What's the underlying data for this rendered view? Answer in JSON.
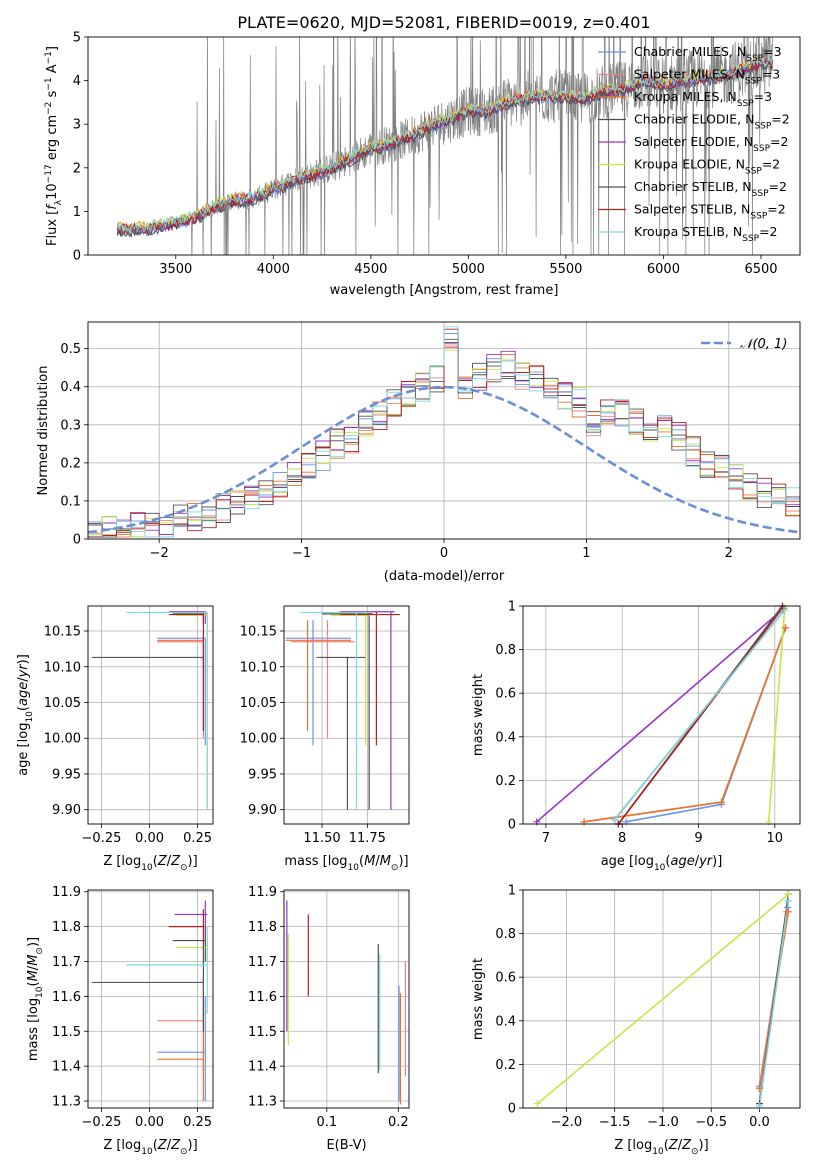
{
  "figure": {
    "title": "PLATE=0620, MJD=52081, FIBERID=0019, z=0.401"
  },
  "colors": {
    "Chabrier MILES": "#6495ed",
    "Salpeter MILES": "#f08080",
    "Kroupa MILES": "#e8742c",
    "Chabrier ELODIE": "#4d4d4d",
    "Salpeter ELODIE": "#9932cc",
    "Kroupa ELODIE": "#c6e64a",
    "Chabrier STELIB": "#555555",
    "Salpeter STELIB": "#b22222",
    "Kroupa STELIB": "#7fd7e0",
    "data": "#808080",
    "gauss": "#6a8fd8"
  },
  "chart_data": [
    {
      "id": "spectrum",
      "type": "line",
      "xlabel": "wavelength [Angstrom, rest frame]",
      "ylabel": "Flux [f_λ 10^-17 erg cm^-2 s^-1 A^-1]",
      "xlim": [
        3050,
        6700
      ],
      "ylim": [
        0,
        5
      ],
      "xticks": [
        3500,
        4000,
        4500,
        5000,
        5500,
        6000,
        6500
      ],
      "yticks": [
        0,
        1,
        2,
        3,
        4,
        5
      ],
      "grid": false,
      "legend": {
        "placement": "top-right",
        "entries": [
          {
            "label": "Chabrier MILES, N",
            "sub": "SSP",
            "suffix": "=3",
            "color_key": "Chabrier MILES"
          },
          {
            "label": "Salpeter MILES, N",
            "sub": "SSP",
            "suffix": "=3",
            "color_key": "Salpeter MILES"
          },
          {
            "label": "Kroupa MILES, N",
            "sub": "SSP",
            "suffix": "=3",
            "color_key": "Kroupa MILES"
          },
          {
            "label": "Chabrier ELODIE, N",
            "sub": "SSP",
            "suffix": "=2",
            "color_key": "Chabrier ELODIE"
          },
          {
            "label": "Salpeter ELODIE, N",
            "sub": "SSP",
            "suffix": "=2",
            "color_key": "Salpeter ELODIE"
          },
          {
            "label": "Kroupa ELODIE, N",
            "sub": "SSP",
            "suffix": "=2",
            "color_key": "Kroupa ELODIE"
          },
          {
            "label": "Chabrier STELIB, N",
            "sub": "SSP",
            "suffix": "=2",
            "color_key": "Chabrier STELIB"
          },
          {
            "label": "Salpeter STELIB, N",
            "sub": "SSP",
            "suffix": "=2",
            "color_key": "Salpeter STELIB"
          },
          {
            "label": "Kroupa STELIB, N",
            "sub": "SSP",
            "suffix": "=2",
            "color_key": "Kroupa STELIB"
          }
        ]
      },
      "continuum_knots": {
        "x": [
          3200,
          3350,
          3500,
          3600,
          3700,
          3800,
          3900,
          4000,
          4100,
          4200,
          4300,
          4400,
          4500,
          4600,
          4700,
          4800,
          4900,
          5000,
          5100,
          5200,
          5300,
          5400,
          5500,
          5600,
          5700,
          5800,
          5900,
          6000,
          6100,
          6200,
          6300,
          6400,
          6500
        ],
        "y": [
          0.6,
          0.6,
          0.75,
          0.85,
          1.1,
          1.25,
          1.3,
          1.5,
          1.7,
          1.85,
          2.0,
          2.2,
          2.45,
          2.55,
          2.7,
          2.95,
          3.1,
          3.3,
          3.3,
          3.5,
          3.6,
          3.65,
          3.6,
          3.6,
          3.75,
          3.8,
          4.0,
          3.9,
          4.0,
          4.05,
          4.1,
          4.25,
          4.4
        ]
      },
      "model_xrange": [
        3200,
        6560
      ],
      "data_xrange": [
        3200,
        6560
      ]
    },
    {
      "id": "residuals",
      "type": "line",
      "xlabel": "(data-model)/error",
      "ylabel": "Normed distribution",
      "xlim": [
        -2.5,
        2.5
      ],
      "ylim": [
        0,
        0.57
      ],
      "xticks": [
        -2,
        -1,
        0,
        1,
        2
      ],
      "yticks": [
        0.0,
        0.1,
        0.2,
        0.3,
        0.4,
        0.5
      ],
      "grid": true,
      "legend": {
        "placement": "top-right",
        "entries": [
          {
            "label": "𝒩(0, 1)",
            "color_key": "gauss"
          }
        ]
      },
      "bin_edges_start": -2.5,
      "bin_width": 0.1,
      "base_shape": [
        0.02,
        0.02,
        0.02,
        0.03,
        0.03,
        0.04,
        0.05,
        0.06,
        0.06,
        0.08,
        0.09,
        0.1,
        0.12,
        0.14,
        0.17,
        0.19,
        0.22,
        0.25,
        0.26,
        0.3,
        0.32,
        0.36,
        0.38,
        0.4,
        0.42,
        0.52,
        0.4,
        0.43,
        0.45,
        0.46,
        0.43,
        0.42,
        0.4,
        0.38,
        0.36,
        0.3,
        0.34,
        0.33,
        0.31,
        0.29,
        0.3,
        0.27,
        0.23,
        0.2,
        0.19,
        0.17,
        0.14,
        0.12,
        0.11,
        0.1
      ]
    },
    {
      "id": "age-vs-Z",
      "type": "scatter",
      "xlabel": "Z [log10(Z/Z☉)]",
      "ylabel": "age [log10(age/yr)]",
      "xlim": [
        -0.32,
        0.33
      ],
      "ylim": [
        9.88,
        10.185
      ],
      "xticks": [
        -0.25,
        0.0,
        0.25
      ],
      "xticklabels": [
        "−0.25",
        "0.00",
        "0.25"
      ],
      "yticks": [
        9.9,
        9.95,
        10.0,
        10.05,
        10.1,
        10.15
      ],
      "yticklabels": [
        "9.90",
        "9.95",
        "10.00",
        "10.05",
        "10.10",
        "10.15"
      ],
      "grid": true,
      "points": [
        {
          "model": "Chabrier MILES",
          "x": 0.29,
          "y": 10.14,
          "xlo": 0.04,
          "xhi": 0.29,
          "ylo": 9.99,
          "yhi": 10.14
        },
        {
          "model": "Salpeter MILES",
          "x": 0.28,
          "y": 10.135,
          "xlo": 0.04,
          "xhi": 0.28,
          "ylo": 10.0,
          "yhi": 10.14
        },
        {
          "model": "Kroupa MILES",
          "x": 0.28,
          "y": 10.137,
          "xlo": 0.04,
          "xhi": 0.28,
          "ylo": 10.01,
          "yhi": 10.14
        },
        {
          "model": "Chabrier ELODIE",
          "x": 0.28,
          "y": 10.174,
          "xlo": 0.12,
          "xhi": 0.28,
          "ylo": 10.16,
          "yhi": 10.175
        },
        {
          "model": "Salpeter ELODIE",
          "x": 0.29,
          "y": 10.177,
          "xlo": 0.1,
          "xhi": 0.29,
          "ylo": 10.16,
          "yhi": 10.177
        },
        {
          "model": "Kroupa ELODIE",
          "x": 0.3,
          "y": 10.172,
          "xlo": 0.14,
          "xhi": 0.3,
          "ylo": 9.9,
          "yhi": 10.175
        },
        {
          "model": "Chabrier STELIB",
          "x": 0.28,
          "y": 10.113,
          "xlo": -0.3,
          "xhi": 0.28,
          "ylo": 10.11,
          "yhi": 10.114
        },
        {
          "model": "Salpeter STELIB",
          "x": 0.28,
          "y": 10.173,
          "xlo": 0.1,
          "xhi": 0.28,
          "ylo": 10.01,
          "yhi": 10.175
        },
        {
          "model": "Kroupa STELIB",
          "x": 0.3,
          "y": 10.176,
          "xlo": -0.12,
          "xhi": 0.3,
          "ylo": 9.9,
          "yhi": 10.177
        }
      ]
    },
    {
      "id": "age-vs-mass",
      "type": "scatter",
      "xlabel": "mass [log10(M/M☉)]",
      "ylabel": "",
      "xlim": [
        11.29,
        11.98
      ],
      "ylim": [
        9.88,
        10.185
      ],
      "xticks": [
        11.5,
        11.75
      ],
      "xticklabels": [
        "11.50",
        "11.75"
      ],
      "yticks": [
        9.9,
        9.95,
        10.0,
        10.05,
        10.1,
        10.15
      ],
      "yticklabels": [
        "9.90",
        "9.95",
        "10.00",
        "10.05",
        "10.10",
        "10.15"
      ],
      "grid": true,
      "points": [
        {
          "model": "Chabrier MILES",
          "x": 11.45,
          "y": 10.14,
          "xlo": 11.3,
          "xhi": 11.66,
          "ylo": 9.99,
          "yhi": 10.165
        },
        {
          "model": "Salpeter MILES",
          "x": 11.53,
          "y": 10.135,
          "xlo": 11.33,
          "xhi": 11.68,
          "ylo": 10.0,
          "yhi": 10.165
        },
        {
          "model": "Kroupa MILES",
          "x": 11.42,
          "y": 10.137,
          "xlo": 11.3,
          "xhi": 11.66,
          "ylo": 10.01,
          "yhi": 10.165
        },
        {
          "model": "Chabrier ELODIE",
          "x": 11.76,
          "y": 10.174,
          "xlo": 11.5,
          "xhi": 11.78,
          "ylo": 9.9,
          "yhi": 10.175
        },
        {
          "model": "Salpeter ELODIE",
          "x": 11.88,
          "y": 10.177,
          "xlo": 11.6,
          "xhi": 11.9,
          "ylo": 9.9,
          "yhi": 10.177
        },
        {
          "model": "Kroupa ELODIE",
          "x": 11.74,
          "y": 10.172,
          "xlo": 11.55,
          "xhi": 11.76,
          "ylo": 9.99,
          "yhi": 10.175
        },
        {
          "model": "Chabrier STELIB",
          "x": 11.64,
          "y": 10.113,
          "xlo": 11.47,
          "xhi": 11.74,
          "ylo": 9.9,
          "yhi": 10.114
        },
        {
          "model": "Salpeter STELIB",
          "x": 11.8,
          "y": 10.173,
          "xlo": 11.6,
          "xhi": 11.93,
          "ylo": 9.99,
          "yhi": 10.177
        },
        {
          "model": "Kroupa STELIB",
          "x": 11.69,
          "y": 10.176,
          "xlo": 11.38,
          "xhi": 11.77,
          "ylo": 9.9,
          "yhi": 10.177
        }
      ]
    },
    {
      "id": "weight-vs-age",
      "type": "line",
      "xlabel": "age [log10(age/yr)]",
      "ylabel": "mass weight",
      "xlim": [
        6.7,
        10.33
      ],
      "ylim": [
        0,
        1.0
      ],
      "xticks": [
        7,
        8,
        9,
        10
      ],
      "yticks": [
        0.0,
        0.2,
        0.4,
        0.6,
        0.8,
        1.0
      ],
      "grid": true,
      "series": [
        {
          "model": "Chabrier MILES",
          "x": [
            8.05,
            9.3,
            10.14
          ],
          "y": [
            0.01,
            0.09,
            0.9
          ]
        },
        {
          "model": "Salpeter MILES",
          "x": [
            7.5,
            9.3,
            10.14
          ],
          "y": [
            0.01,
            0.1,
            0.9
          ]
        },
        {
          "model": "Kroupa MILES",
          "x": [
            7.5,
            9.3,
            10.14
          ],
          "y": [
            0.01,
            0.1,
            0.9
          ]
        },
        {
          "model": "Chabrier ELODIE",
          "x": [
            7.9,
            10.12
          ],
          "y": [
            0.02,
            0.98
          ]
        },
        {
          "model": "Salpeter ELODIE",
          "x": [
            6.88,
            10.12
          ],
          "y": [
            0.01,
            0.99
          ]
        },
        {
          "model": "Kroupa ELODIE",
          "x": [
            9.92,
            10.13
          ],
          "y": [
            0.01,
            0.99
          ]
        },
        {
          "model": "Chabrier STELIB",
          "x": [
            7.95,
            10.1
          ],
          "y": [
            0.0,
            1.0
          ]
        },
        {
          "model": "Salpeter STELIB",
          "x": [
            7.95,
            10.1
          ],
          "y": [
            0.0,
            0.99
          ]
        },
        {
          "model": "Kroupa STELIB",
          "x": [
            7.9,
            10.12
          ],
          "y": [
            0.02,
            0.98
          ]
        }
      ]
    },
    {
      "id": "mass-vs-Z",
      "type": "scatter",
      "xlabel": "Z [log10(Z/Z☉)]",
      "ylabel": "mass [log10(M/M☉)]",
      "xlim": [
        -0.32,
        0.33
      ],
      "ylim": [
        11.28,
        11.905
      ],
      "xticks": [
        -0.25,
        0.0,
        0.25
      ],
      "xticklabels": [
        "−0.25",
        "0.00",
        "0.25"
      ],
      "yticks": [
        11.3,
        11.4,
        11.5,
        11.6,
        11.7,
        11.8,
        11.9
      ],
      "grid": true,
      "points": [
        {
          "model": "Chabrier MILES",
          "x": 0.29,
          "y": 11.44,
          "xlo": 0.04,
          "xhi": 0.29,
          "ylo": 11.3,
          "yhi": 11.6
        },
        {
          "model": "Salpeter MILES",
          "x": 0.28,
          "y": 11.53,
          "xlo": 0.04,
          "xhi": 0.28,
          "ylo": 11.35,
          "yhi": 11.65
        },
        {
          "model": "Kroupa MILES",
          "x": 0.28,
          "y": 11.42,
          "xlo": 0.04,
          "xhi": 0.28,
          "ylo": 11.3,
          "yhi": 11.6
        },
        {
          "model": "Chabrier ELODIE",
          "x": 0.29,
          "y": 11.76,
          "xlo": 0.12,
          "xhi": 0.29,
          "ylo": 11.7,
          "yhi": 11.8
        },
        {
          "model": "Salpeter ELODIE",
          "x": 0.29,
          "y": 11.835,
          "xlo": 0.13,
          "xhi": 0.3,
          "ylo": 11.79,
          "yhi": 11.875
        },
        {
          "model": "Kroupa ELODIE",
          "x": 0.3,
          "y": 11.74,
          "xlo": 0.14,
          "xhi": 0.3,
          "ylo": 11.71,
          "yhi": 11.77
        },
        {
          "model": "Chabrier STELIB",
          "x": 0.28,
          "y": 11.64,
          "xlo": -0.3,
          "xhi": 0.28,
          "ylo": 11.5,
          "yhi": 11.75
        },
        {
          "model": "Salpeter STELIB",
          "x": 0.28,
          "y": 11.8,
          "xlo": 0.1,
          "xhi": 0.28,
          "ylo": 11.75,
          "yhi": 11.85
        },
        {
          "model": "Kroupa STELIB",
          "x": 0.3,
          "y": 11.69,
          "xlo": -0.12,
          "xhi": 0.3,
          "ylo": 11.55,
          "yhi": 11.8
        }
      ]
    },
    {
      "id": "mass-vs-ebv",
      "type": "scatter",
      "xlabel": "E(B-V)",
      "ylabel": "",
      "xlim": [
        0.04,
        0.215
      ],
      "ylim": [
        11.28,
        11.905
      ],
      "xticks": [
        0.1,
        0.2
      ],
      "yticks": [
        11.3,
        11.4,
        11.5,
        11.6,
        11.7,
        11.8,
        11.9
      ],
      "grid": true,
      "segments": [
        {
          "model": "Salpeter ELODIE",
          "x": 0.044,
          "ylo": 11.5,
          "yhi": 11.875
        },
        {
          "model": "Kroupa ELODIE",
          "x": 0.046,
          "ylo": 11.46,
          "yhi": 11.78
        },
        {
          "model": "Salpeter STELIB",
          "x": 0.074,
          "ylo": 11.6,
          "yhi": 11.835
        },
        {
          "model": "Chabrier ELODIE",
          "x": 0.172,
          "ylo": 11.38,
          "yhi": 11.75
        },
        {
          "model": "Kroupa STELIB",
          "x": 0.174,
          "ylo": 11.39,
          "yhi": 11.72
        },
        {
          "model": "Chabrier MILES",
          "x": 0.201,
          "ylo": 11.3,
          "yhi": 11.63
        },
        {
          "model": "Kroupa MILES",
          "x": 0.203,
          "ylo": 11.29,
          "yhi": 11.61
        },
        {
          "model": "Salpeter MILES",
          "x": 0.21,
          "ylo": 11.37,
          "yhi": 11.7
        }
      ]
    },
    {
      "id": "weight-vs-Z",
      "type": "line",
      "xlabel": "Z [log10(Z/Z☉)]",
      "ylabel": "mass weight",
      "xlim": [
        -2.45,
        0.42
      ],
      "ylim": [
        0,
        1.0
      ],
      "xticks": [
        -2.0,
        -1.5,
        -1.0,
        -0.5,
        0.0
      ],
      "xticklabels": [
        "−2.0",
        "−1.5",
        "−1.0",
        "−0.5",
        "0.0"
      ],
      "yticks": [
        0.0,
        0.2,
        0.4,
        0.6,
        0.8,
        1.0
      ],
      "grid": true,
      "series": [
        {
          "model": "Chabrier MILES",
          "x": [
            0.0,
            0.29
          ],
          "y": [
            0.1,
            0.92
          ]
        },
        {
          "model": "Salpeter MILES",
          "x": [
            0.0,
            0.28
          ],
          "y": [
            0.09,
            0.9
          ]
        },
        {
          "model": "Kroupa MILES",
          "x": [
            0.0,
            0.3
          ],
          "y": [
            0.09,
            0.9
          ]
        },
        {
          "model": "Chabrier ELODIE",
          "x": [
            0.0,
            0.3
          ],
          "y": [
            0.02,
            0.98
          ]
        },
        {
          "model": "Kroupa STELIB",
          "x": [
            0.0,
            0.3
          ],
          "y": [
            0.01,
            0.95
          ]
        },
        {
          "model": "Kroupa ELODIE",
          "x": [
            -2.3,
            0.3
          ],
          "y": [
            0.02,
            0.98
          ]
        }
      ]
    }
  ]
}
